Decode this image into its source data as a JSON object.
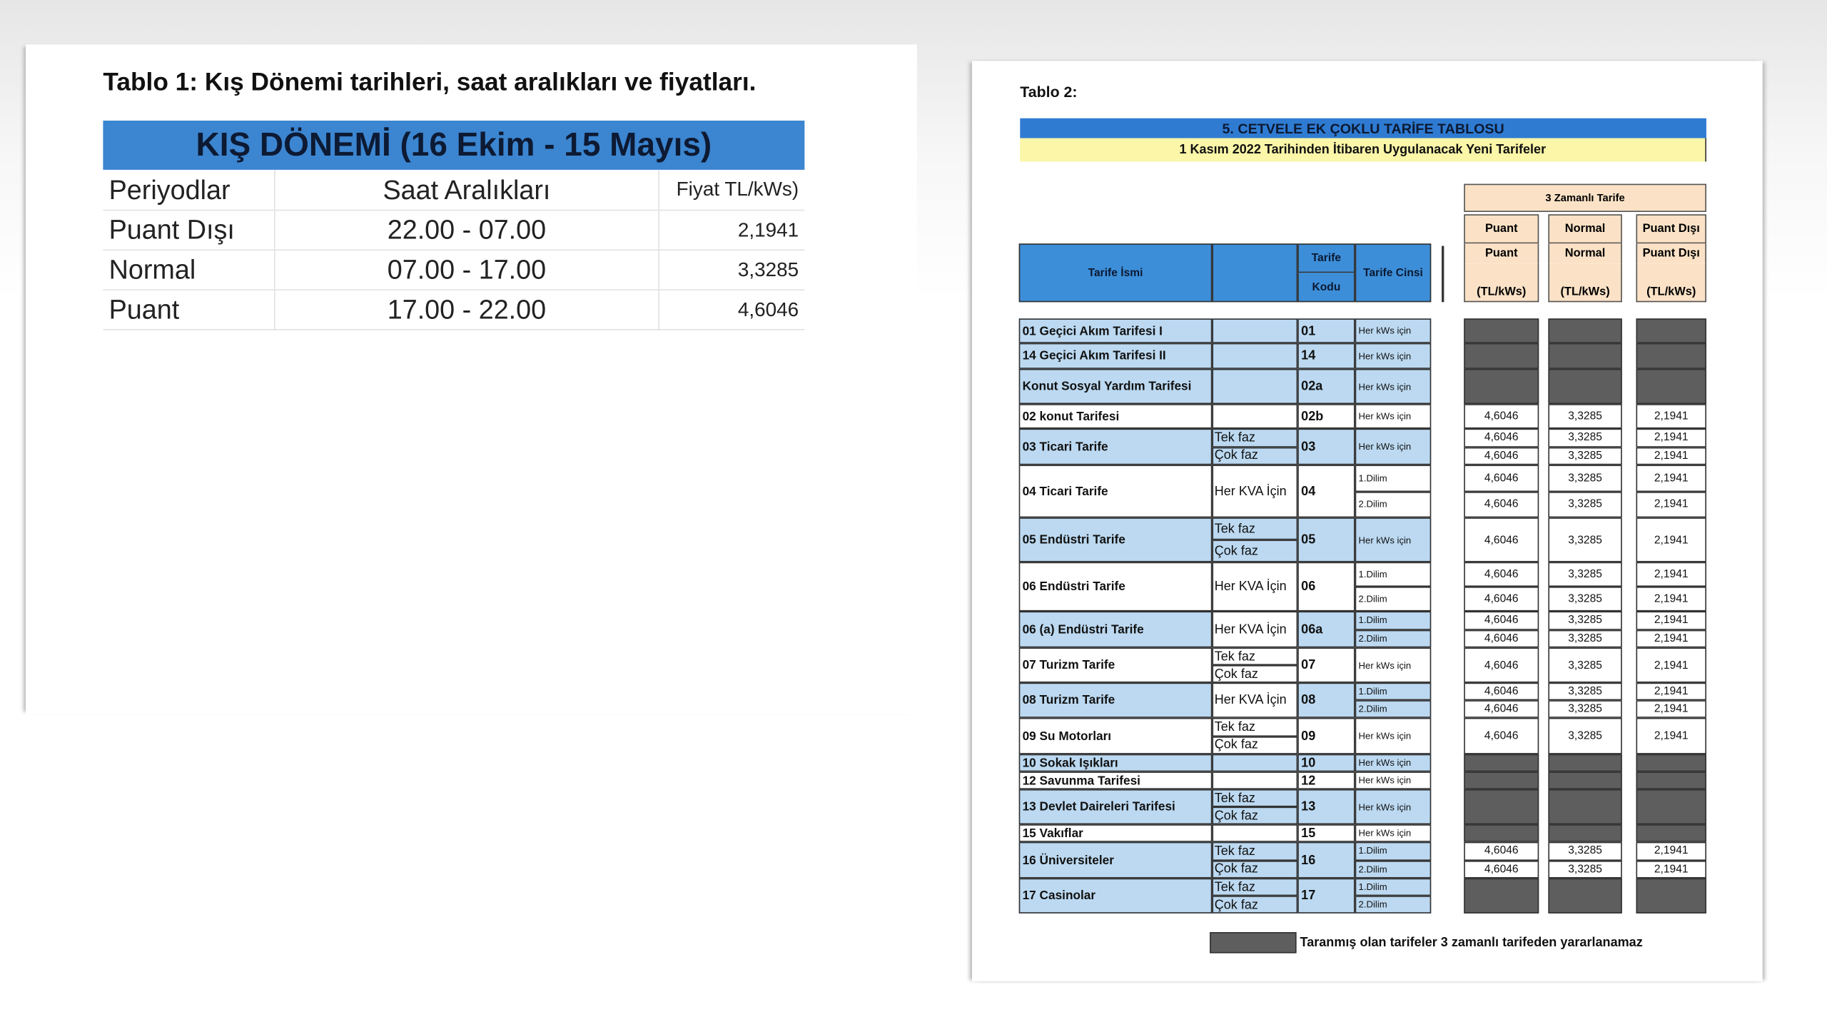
{
  "left_page": {
    "title": "Tablo 1: Kış Dönemi tarihleri, saat aralıkları ve fiyatları.",
    "table": {
      "banner": "KIŞ DÖNEMİ (16 Ekim - 15 Mayıs)",
      "header": [
        "Periyodlar",
        "Saat Aralıkları",
        "Fiyat TL/kWs)"
      ],
      "rows": [
        [
          "Puant Dışı",
          "22.00 - 07.00",
          "2,1941"
        ],
        [
          "Normal",
          "07.00 - 17.00",
          "3,3285"
        ],
        [
          "Puant",
          "17.00 - 22.00",
          "4,6046"
        ]
      ]
    }
  },
  "right_page": {
    "title": "Tablo 2:",
    "banner": "5. CETVELE EK ÇOKLU TARİFE TABLOSU",
    "subtitle": "1 Kasım 2022 Tarihinden İtibaren Uygulanacak Yeni Tarifeler",
    "price_group": "3 Zamanlı Tarife",
    "price_columns": [
      "Puant",
      "Normal",
      "Puant Dışı"
    ],
    "header": {
      "name": "Tarife İsmi",
      "code": [
        "Tarife",
        "Kodu"
      ],
      "kind": "Tarife Cinsi",
      "unit": "(TL/kWs)"
    },
    "rows": [
      {
        "name": "01 Geçici Akım Tarifesi I",
        "subtypes": [],
        "code": "01",
        "kinds": [
          "Her kWs için"
        ],
        "prices": null
      },
      {
        "name": "14 Geçici Akım Tarifesi II",
        "subtypes": [],
        "code": "14",
        "kinds": [
          "Her kWs için"
        ],
        "prices": null
      },
      {
        "name": "Konut Sosyal Yardım Tarifesi",
        "subtypes": [],
        "code": "02a",
        "kinds": [
          "Her kWs için"
        ],
        "prices": null
      },
      {
        "name": "02 konut Tarifesi",
        "subtypes": [],
        "code": "02b",
        "kinds": [
          "Her kWs için"
        ],
        "prices": [
          [
            "4,6046",
            "3,3285",
            "2,1941"
          ]
        ]
      },
      {
        "name": "03 Ticari Tarife",
        "subtypes": [
          "Tek faz",
          "Çok faz"
        ],
        "code": "03",
        "kinds": [
          "Her kWs için"
        ],
        "prices": [
          [
            "4,6046",
            "3,3285",
            "2,1941"
          ],
          [
            "4,6046",
            "3,3285",
            "2,1941"
          ]
        ]
      },
      {
        "name": "04 Ticari Tarife",
        "subtypes": [
          "Her KVA İçin"
        ],
        "code": "04",
        "kinds": [
          "1.Dilim",
          "2.Dilim"
        ],
        "prices": [
          [
            "4,6046",
            "3,3285",
            "2,1941"
          ],
          [
            "4,6046",
            "3,3285",
            "2,1941"
          ]
        ]
      },
      {
        "name": "05 Endüstri Tarife",
        "subtypes": [
          "Tek faz",
          "Çok faz"
        ],
        "code": "05",
        "kinds": [
          "Her kWs için"
        ],
        "prices": [
          [
            "4,6046",
            "3,3285",
            "2,1941"
          ]
        ]
      },
      {
        "name": "06 Endüstri Tarife",
        "subtypes": [
          "Her KVA İçin"
        ],
        "code": "06",
        "kinds": [
          "1.Dilim",
          "2.Dilim"
        ],
        "prices": [
          [
            "4,6046",
            "3,3285",
            "2,1941"
          ],
          [
            "4,6046",
            "3,3285",
            "2,1941"
          ]
        ]
      },
      {
        "name": "06 (a)  Endüstri Tarife",
        "subtypes": [
          "Her KVA İçin"
        ],
        "code": "06a",
        "kinds": [
          "1.Dilim",
          "2.Dilim"
        ],
        "prices": [
          [
            "4,6046",
            "3,3285",
            "2,1941"
          ],
          [
            "4,6046",
            "3,3285",
            "2,1941"
          ]
        ]
      },
      {
        "name": "07 Turizm Tarife",
        "subtypes": [
          "Tek faz",
          "Çok faz"
        ],
        "code": "07",
        "kinds": [
          "Her kWs için"
        ],
        "prices": [
          [
            "4,6046",
            "3,3285",
            "2,1941"
          ]
        ]
      },
      {
        "name": "08 Turizm Tarife",
        "subtypes": [
          "Her KVA İçin"
        ],
        "code": "08",
        "kinds": [
          "1.Dilim",
          "2.Dilim"
        ],
        "prices": [
          [
            "4,6046",
            "3,3285",
            "2,1941"
          ],
          [
            "4,6046",
            "3,3285",
            "2,1941"
          ]
        ]
      },
      {
        "name": "09 Su Motorları",
        "subtypes": [
          "Tek faz",
          "Çok faz"
        ],
        "code": "09",
        "kinds": [
          "Her kWs için"
        ],
        "prices": [
          [
            "4,6046",
            "3,3285",
            "2,1941"
          ]
        ]
      },
      {
        "name": "10 Sokak Işıkları",
        "subtypes": [],
        "code": "10",
        "kinds": [
          "Her kWs için"
        ],
        "prices": null
      },
      {
        "name": "12 Savunma Tarifesi",
        "subtypes": [],
        "code": "12",
        "kinds": [
          "Her kWs için"
        ],
        "prices": null
      },
      {
        "name": "13 Devlet Daireleri Tarifesi",
        "subtypes": [
          "Tek faz",
          "Çok faz"
        ],
        "code": "13",
        "kinds": [
          "Her kWs için"
        ],
        "prices": null
      },
      {
        "name": "15 Vakıflar",
        "subtypes": [],
        "code": "15",
        "kinds": [
          "Her kWs için"
        ],
        "prices": null
      },
      {
        "name": "16 Üniversiteler",
        "subtypes": [
          "Tek faz",
          "Çok faz"
        ],
        "code": "16",
        "kinds": [
          "1.Dilim",
          "2.Dilim"
        ],
        "prices": [
          [
            "4,6046",
            "3,3285",
            "2,1941"
          ],
          [
            "4,6046",
            "3,3285",
            "2,1941"
          ]
        ]
      },
      {
        "name": "17 Casinolar",
        "subtypes": [
          "Tek faz",
          "Çok faz"
        ],
        "code": "17",
        "kinds": [
          "1.Dilim",
          "2.Dilim"
        ],
        "prices": null
      }
    ],
    "legend": "Taranmış olan tarifeler 3 zamanlı tarifeden yararlanamaz"
  }
}
